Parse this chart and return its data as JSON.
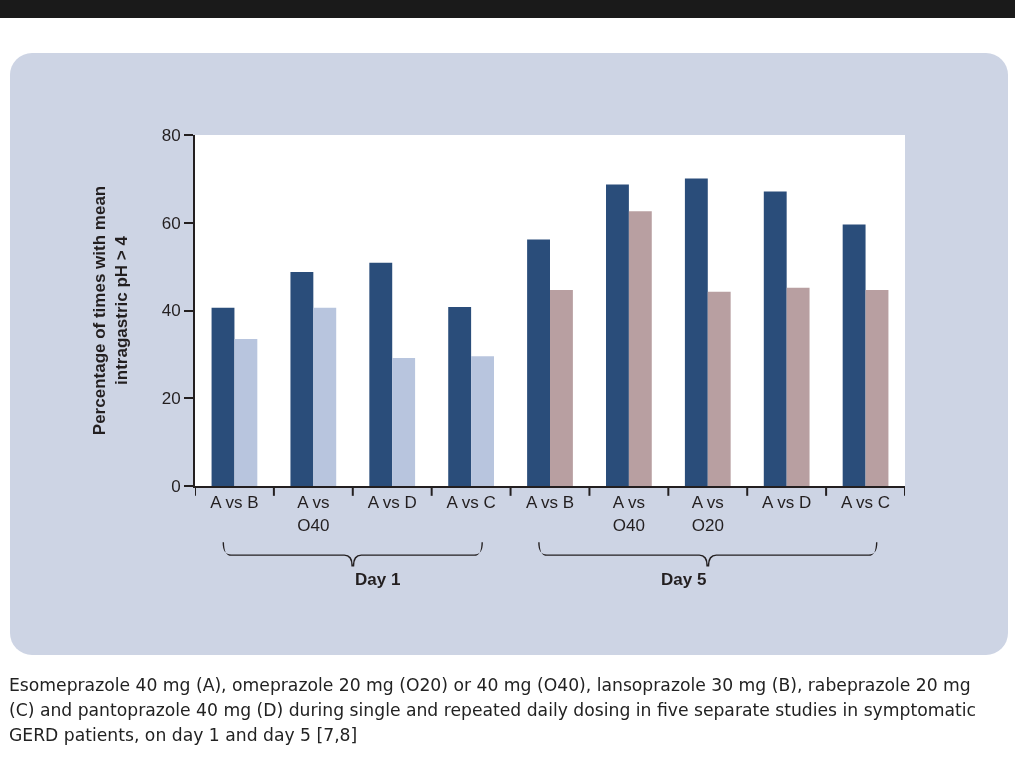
{
  "chart_data": {
    "type": "bar",
    "ylabel": "Percentage of times with mean intragastric pH > 4",
    "categories": [
      "A vs B",
      "A vs O40",
      "A vs D",
      "A vs C",
      "A vs B",
      "A vs O40",
      "A vs O20",
      "A vs D",
      "A vs C"
    ],
    "series": [
      {
        "color": "#2a4d7a",
        "values": [
          40.6,
          48.8,
          50.9,
          40.8,
          56.2,
          68.7,
          70.1,
          67.1,
          59.6
        ]
      },
      {
        "colors": [
          "#b8c5de",
          "#b8c5de",
          "#b8c5de",
          "#b8c5de",
          "#b89fa1",
          "#b89fa1",
          "#b89fa1",
          "#b89fa1",
          "#b89fa1"
        ],
        "values": [
          33.5,
          40.6,
          29.2,
          29.6,
          44.7,
          62.6,
          44.3,
          45.2,
          44.7
        ]
      }
    ],
    "ylim": [
      0,
      80
    ],
    "yticks": [
      0,
      20,
      40,
      60,
      80
    ],
    "grid": false,
    "annotations": [
      "Day 1",
      "Day 5",
      "Esomeprazole 40 mg (A), omeprazole 20 mg (O20) or 40 mg (O40), lansoprazole 30 mg (B), rabeprazole 20 mg (C) and pantoprazole 40 mg (D) during single and repeated daily dosing in five separate studies in symptomatic GERD patients, on day 1 and day 5 [7,8]"
    ]
  }
}
